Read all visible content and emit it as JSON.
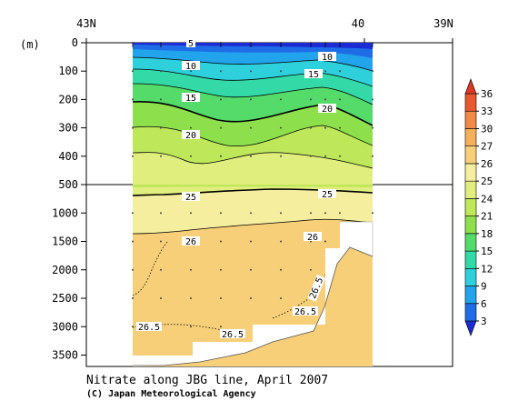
{
  "chart_data": {
    "type": "contour-section",
    "title": "Nitrate along JBG line, April 2007",
    "credit": "(C) Japan Meteorological Agency",
    "y_unit": "(m)",
    "x_ticks": [
      {
        "label": "43N",
        "lat": 43
      },
      {
        "label": "40",
        "lat": 40
      },
      {
        "label": "39N",
        "lat": 39
      }
    ],
    "y_ticks_upper": [
      0,
      100,
      200,
      300,
      400,
      500
    ],
    "y_ticks_lower": [
      1000,
      1500,
      2000,
      2500,
      3000,
      3500
    ],
    "colorbar": {
      "levels": [
        3,
        6,
        9,
        12,
        15,
        18,
        21,
        24,
        25,
        26,
        27,
        30,
        33,
        36
      ],
      "colors": [
        "#1c2bd4",
        "#1f6de6",
        "#22a4ec",
        "#2ed0dc",
        "#33d9a6",
        "#55db6a",
        "#8de04c",
        "#bfe75a",
        "#e0ee7e",
        "#f4ee9e",
        "#f7cf78",
        "#f5b15a",
        "#f08a44",
        "#e75a30",
        "#dc3a22"
      ]
    },
    "contour_labels": [
      "5",
      "10",
      "10",
      "15",
      "15",
      "20",
      "20",
      "25",
      "25",
      "26",
      "26",
      "26.5",
      "26.5",
      "26.5",
      "26.5"
    ]
  }
}
